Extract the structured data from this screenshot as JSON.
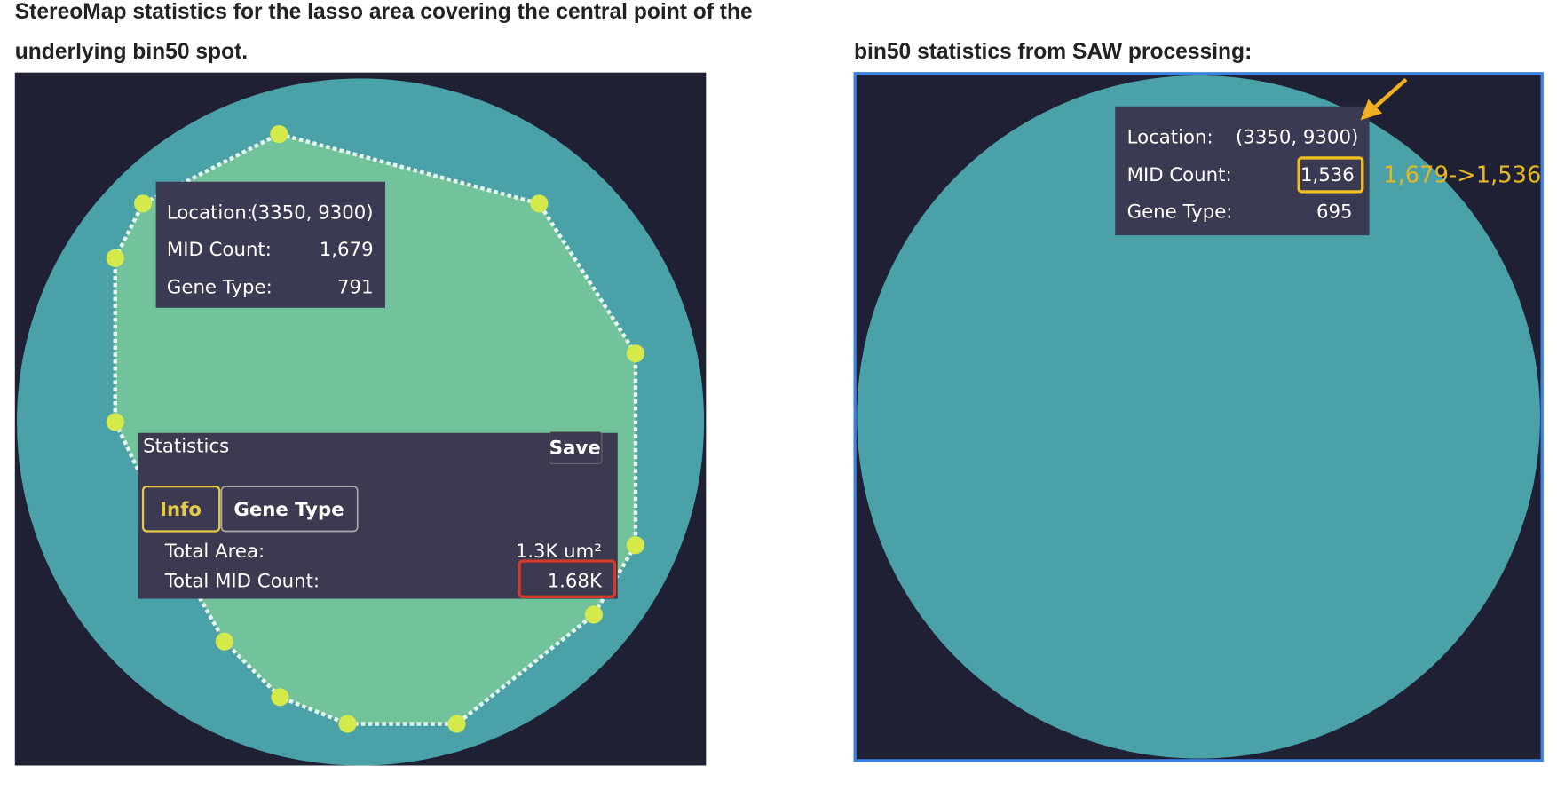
{
  "left": {
    "title_lines": [
      "StereoMap statistics for the lasso area covering the central point of the",
      "underlying bin50 spot."
    ],
    "tooltip": {
      "rows": [
        [
          "Location:",
          "(3350, 9300)"
        ],
        [
          "MID Count:",
          "1,679"
        ],
        [
          "Gene Type:",
          "791"
        ]
      ]
    },
    "statistics": {
      "title": "Statistics",
      "save": "Save",
      "tabs": [
        "Info",
        "Gene Type"
      ],
      "rows": [
        [
          "Total Area:",
          "1.3K um²"
        ],
        [
          "Total MID Count:",
          "1.68K"
        ]
      ]
    }
  },
  "right": {
    "title": "bin50 statistics from SAW processing:",
    "tooltip": {
      "rows": [
        [
          "Location:",
          "(3350, 9300)"
        ],
        [
          "MID Count:",
          "1,536"
        ],
        [
          "Gene Type:",
          "695"
        ]
      ]
    },
    "annotation": "1,679->1,536"
  }
}
